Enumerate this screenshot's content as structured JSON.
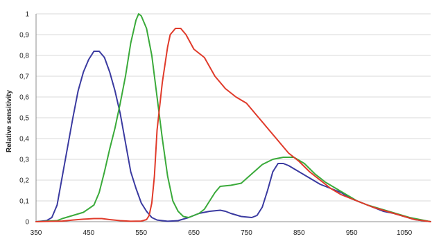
{
  "chart_data": {
    "type": "line",
    "title": "",
    "xlabel": "",
    "ylabel": "Relative sensitivity",
    "xlim": [
      350,
      1100
    ],
    "ylim": [
      0,
      1
    ],
    "grid": true,
    "legend": "none",
    "x_ticks": [
      350,
      450,
      550,
      650,
      750,
      850,
      950,
      1050
    ],
    "x_tick_labels": [
      "350",
      "450",
      "550",
      "650",
      "750",
      "850",
      "950",
      "1050"
    ],
    "y_ticks": [
      0,
      0.1,
      0.2,
      0.3,
      0.4,
      0.5,
      0.6,
      0.7,
      0.8,
      0.9,
      1
    ],
    "y_tick_labels": [
      "0",
      "0,1",
      "0,2",
      "0,3",
      "0,4",
      "0,5",
      "0,6",
      "0,7",
      "0,8",
      "0,9",
      "1"
    ],
    "series": [
      {
        "color": "#3a3aa0",
        "points": [
          [
            350,
            0.0
          ],
          [
            370,
            0.005
          ],
          [
            380,
            0.02
          ],
          [
            390,
            0.08
          ],
          [
            400,
            0.22
          ],
          [
            410,
            0.36
          ],
          [
            420,
            0.5
          ],
          [
            430,
            0.63
          ],
          [
            440,
            0.72
          ],
          [
            450,
            0.78
          ],
          [
            460,
            0.82
          ],
          [
            470,
            0.82
          ],
          [
            480,
            0.79
          ],
          [
            490,
            0.72
          ],
          [
            500,
            0.63
          ],
          [
            510,
            0.52
          ],
          [
            520,
            0.38
          ],
          [
            530,
            0.24
          ],
          [
            540,
            0.16
          ],
          [
            550,
            0.09
          ],
          [
            560,
            0.05
          ],
          [
            570,
            0.02
          ],
          [
            580,
            0.008
          ],
          [
            600,
            0.002
          ],
          [
            620,
            0.005
          ],
          [
            640,
            0.02
          ],
          [
            660,
            0.04
          ],
          [
            680,
            0.05
          ],
          [
            700,
            0.055
          ],
          [
            710,
            0.05
          ],
          [
            720,
            0.04
          ],
          [
            740,
            0.025
          ],
          [
            760,
            0.02
          ],
          [
            770,
            0.03
          ],
          [
            780,
            0.07
          ],
          [
            790,
            0.15
          ],
          [
            800,
            0.24
          ],
          [
            810,
            0.28
          ],
          [
            820,
            0.28
          ],
          [
            830,
            0.27
          ],
          [
            850,
            0.24
          ],
          [
            870,
            0.21
          ],
          [
            890,
            0.18
          ],
          [
            910,
            0.16
          ],
          [
            930,
            0.14
          ],
          [
            950,
            0.11
          ],
          [
            970,
            0.09
          ],
          [
            990,
            0.07
          ],
          [
            1010,
            0.05
          ],
          [
            1030,
            0.04
          ],
          [
            1050,
            0.025
          ],
          [
            1070,
            0.01
          ],
          [
            1100,
            0.0
          ]
        ]
      },
      {
        "color": "#3aaa3a",
        "points": [
          [
            350,
            0.0
          ],
          [
            390,
            0.005
          ],
          [
            400,
            0.015
          ],
          [
            420,
            0.03
          ],
          [
            440,
            0.045
          ],
          [
            460,
            0.08
          ],
          [
            470,
            0.14
          ],
          [
            480,
            0.24
          ],
          [
            490,
            0.35
          ],
          [
            500,
            0.45
          ],
          [
            510,
            0.57
          ],
          [
            520,
            0.7
          ],
          [
            530,
            0.86
          ],
          [
            540,
            0.97
          ],
          [
            545,
            1.0
          ],
          [
            550,
            0.99
          ],
          [
            560,
            0.93
          ],
          [
            570,
            0.8
          ],
          [
            580,
            0.6
          ],
          [
            590,
            0.4
          ],
          [
            600,
            0.22
          ],
          [
            610,
            0.1
          ],
          [
            620,
            0.05
          ],
          [
            630,
            0.025
          ],
          [
            640,
            0.02
          ],
          [
            650,
            0.03
          ],
          [
            660,
            0.04
          ],
          [
            670,
            0.06
          ],
          [
            680,
            0.1
          ],
          [
            690,
            0.14
          ],
          [
            700,
            0.17
          ],
          [
            720,
            0.175
          ],
          [
            740,
            0.185
          ],
          [
            760,
            0.23
          ],
          [
            780,
            0.275
          ],
          [
            800,
            0.3
          ],
          [
            820,
            0.31
          ],
          [
            840,
            0.31
          ],
          [
            860,
            0.28
          ],
          [
            880,
            0.23
          ],
          [
            900,
            0.19
          ],
          [
            920,
            0.16
          ],
          [
            940,
            0.13
          ],
          [
            960,
            0.1
          ],
          [
            980,
            0.08
          ],
          [
            1000,
            0.065
          ],
          [
            1020,
            0.05
          ],
          [
            1040,
            0.035
          ],
          [
            1060,
            0.02
          ],
          [
            1080,
            0.01
          ],
          [
            1100,
            0.0
          ]
        ]
      },
      {
        "color": "#e03a2a",
        "points": [
          [
            350,
            0.0
          ],
          [
            400,
            0.003
          ],
          [
            420,
            0.008
          ],
          [
            440,
            0.012
          ],
          [
            460,
            0.015
          ],
          [
            475,
            0.015
          ],
          [
            490,
            0.01
          ],
          [
            510,
            0.005
          ],
          [
            530,
            0.002
          ],
          [
            550,
            0.003
          ],
          [
            560,
            0.01
          ],
          [
            565,
            0.03
          ],
          [
            570,
            0.09
          ],
          [
            575,
            0.22
          ],
          [
            580,
            0.44
          ],
          [
            590,
            0.67
          ],
          [
            600,
            0.84
          ],
          [
            605,
            0.9
          ],
          [
            615,
            0.93
          ],
          [
            625,
            0.93
          ],
          [
            635,
            0.9
          ],
          [
            650,
            0.83
          ],
          [
            670,
            0.79
          ],
          [
            690,
            0.7
          ],
          [
            710,
            0.64
          ],
          [
            730,
            0.6
          ],
          [
            750,
            0.57
          ],
          [
            770,
            0.51
          ],
          [
            790,
            0.45
          ],
          [
            810,
            0.39
          ],
          [
            830,
            0.33
          ],
          [
            850,
            0.29
          ],
          [
            870,
            0.24
          ],
          [
            890,
            0.2
          ],
          [
            910,
            0.16
          ],
          [
            930,
            0.13
          ],
          [
            950,
            0.11
          ],
          [
            970,
            0.09
          ],
          [
            990,
            0.07
          ],
          [
            1010,
            0.055
          ],
          [
            1030,
            0.04
          ],
          [
            1050,
            0.025
          ],
          [
            1070,
            0.01
          ],
          [
            1100,
            0.0
          ]
        ]
      }
    ]
  }
}
